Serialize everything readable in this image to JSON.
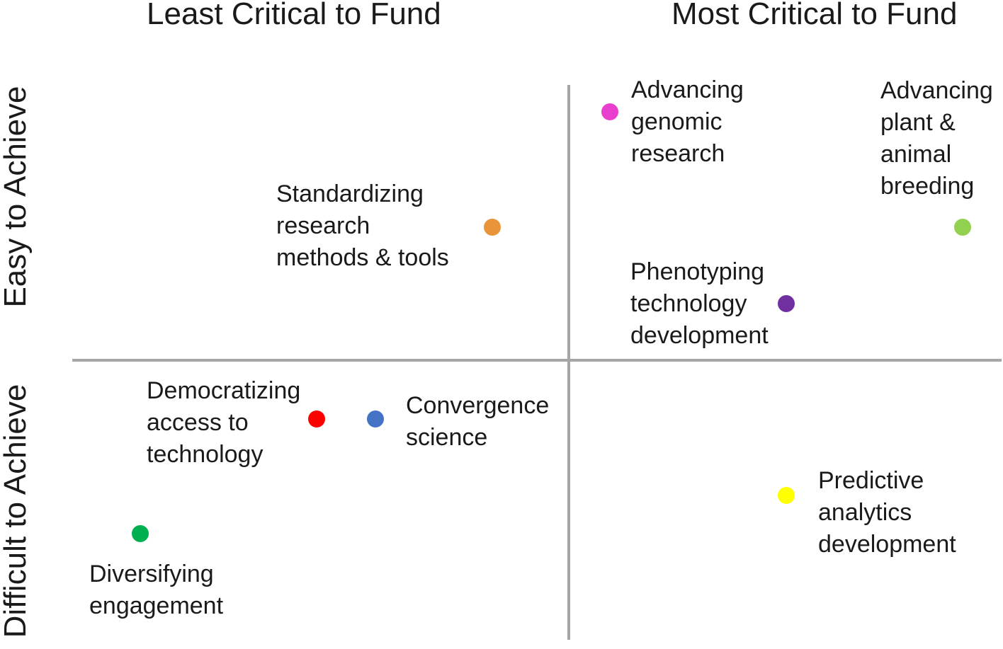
{
  "quadrant_titles": {
    "left_column": "Least Critical to Fund",
    "right_column": "Most Critical to Fund",
    "top_row": "Easy to Achieve",
    "bottom_row": "Difficult to Achieve"
  },
  "items": [
    {
      "id": "advancing-genomic-research",
      "label": "Advancing\ngenomic\nresearch",
      "color": "#e83fcf",
      "quadrant": "most-critical-easy"
    },
    {
      "id": "advancing-plant-animal-breeding",
      "label": "Advancing\nplant &\nanimal\nbreeding",
      "color": "#92d050",
      "quadrant": "most-critical-easy"
    },
    {
      "id": "standardizing-research-methods",
      "label": "Standardizing\nresearch\nmethods & tools",
      "color": "#e8943a",
      "quadrant": "least-critical-easy"
    },
    {
      "id": "phenotyping-technology",
      "label": "Phenotyping\ntechnology\ndevelopment",
      "color": "#7030a0",
      "quadrant": "most-critical-easy"
    },
    {
      "id": "democratizing-access",
      "label": "Democratizing\naccess to\ntechnology",
      "color": "#ff0000",
      "quadrant": "least-critical-difficult"
    },
    {
      "id": "convergence-science",
      "label": "Convergence\nscience",
      "color": "#4472c4",
      "quadrant": "least-critical-difficult"
    },
    {
      "id": "predictive-analytics",
      "label": "Predictive\nanalytics\ndevelopment",
      "color": "#ffff00",
      "quadrant": "most-critical-difficult"
    },
    {
      "id": "diversifying-engagement",
      "label": "Diversifying\nengagement",
      "color": "#00b050",
      "quadrant": "least-critical-difficult"
    }
  ]
}
